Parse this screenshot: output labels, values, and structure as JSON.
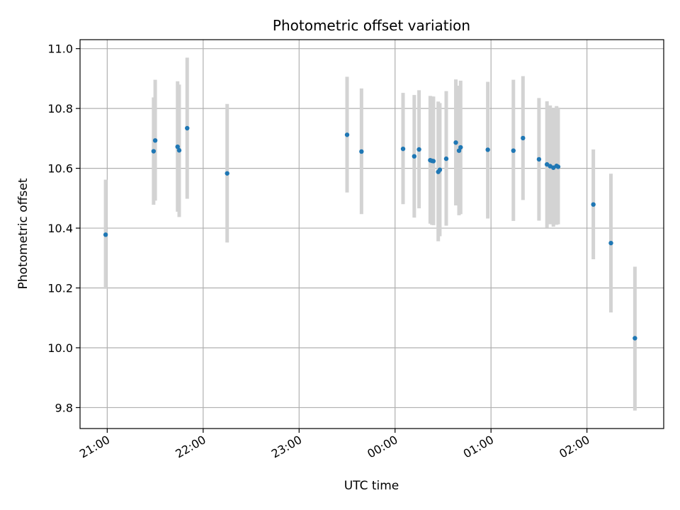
{
  "chart_data": {
    "type": "scatter",
    "title": "Photometric offset variation",
    "xlabel": "UTC time",
    "ylabel": "Photometric offset",
    "x_tick_labels": [
      "21:00",
      "22:00",
      "23:00",
      "00:00",
      "01:00",
      "02:00"
    ],
    "y_tick_labels": [
      "9.8",
      "10.0",
      "10.2",
      "10.4",
      "10.6",
      "10.8",
      "11.0"
    ],
    "y_ticks": [
      9.8,
      10.0,
      10.2,
      10.4,
      10.6,
      10.8,
      11.0
    ],
    "x_ticks": [
      "21:00",
      "22:00",
      "23:00",
      "00:00",
      "01:00",
      "02:00"
    ],
    "xlim": [
      "20:43",
      "02:48"
    ],
    "ylim": [
      9.73,
      11.03
    ],
    "grid": true,
    "colors": {
      "point": "#1f77b4",
      "errorbar": "#d3d3d3",
      "grid": "#b0b0b0"
    },
    "points": [
      {
        "x": "20:59",
        "y": 10.378,
        "ylow": 10.197,
        "yhigh": 10.562
      },
      {
        "x": "21:29",
        "y": 10.657,
        "ylow": 10.478,
        "yhigh": 10.837
      },
      {
        "x": "21:30",
        "y": 10.693,
        "ylow": 10.492,
        "yhigh": 10.896
      },
      {
        "x": "21:44",
        "y": 10.672,
        "ylow": 10.455,
        "yhigh": 10.891
      },
      {
        "x": "21:45",
        "y": 10.66,
        "ylow": 10.437,
        "yhigh": 10.88
      },
      {
        "x": "21:50",
        "y": 10.734,
        "ylow": 10.498,
        "yhigh": 10.97
      },
      {
        "x": "22:15",
        "y": 10.583,
        "ylow": 10.352,
        "yhigh": 10.815
      },
      {
        "x": "23:30",
        "y": 10.712,
        "ylow": 10.519,
        "yhigh": 10.906
      },
      {
        "x": "23:39",
        "y": 10.656,
        "ylow": 10.447,
        "yhigh": 10.867
      },
      {
        "x": "00:05",
        "y": 10.665,
        "ylow": 10.48,
        "yhigh": 10.852
      },
      {
        "x": "00:12",
        "y": 10.64,
        "ylow": 10.435,
        "yhigh": 10.845
      },
      {
        "x": "00:15",
        "y": 10.663,
        "ylow": 10.466,
        "yhigh": 10.861
      },
      {
        "x": "00:22",
        "y": 10.627,
        "ylow": 10.415,
        "yhigh": 10.842
      },
      {
        "x": "00:23",
        "y": 10.625,
        "ylow": 10.411,
        "yhigh": 10.84
      },
      {
        "x": "00:24",
        "y": 10.624,
        "ylow": 10.41,
        "yhigh": 10.84
      },
      {
        "x": "00:27",
        "y": 10.588,
        "ylow": 10.356,
        "yhigh": 10.823
      },
      {
        "x": "00:28",
        "y": 10.595,
        "ylow": 10.373,
        "yhigh": 10.818
      },
      {
        "x": "00:32",
        "y": 10.632,
        "ylow": 10.408,
        "yhigh": 10.858
      },
      {
        "x": "00:38",
        "y": 10.686,
        "ylow": 10.476,
        "yhigh": 10.897
      },
      {
        "x": "00:40",
        "y": 10.659,
        "ylow": 10.443,
        "yhigh": 10.876
      },
      {
        "x": "00:41",
        "y": 10.67,
        "ylow": 10.447,
        "yhigh": 10.893
      },
      {
        "x": "00:58",
        "y": 10.662,
        "ylow": 10.432,
        "yhigh": 10.889
      },
      {
        "x": "01:14",
        "y": 10.659,
        "ylow": 10.424,
        "yhigh": 10.896
      },
      {
        "x": "01:20",
        "y": 10.701,
        "ylow": 10.494,
        "yhigh": 10.908
      },
      {
        "x": "01:30",
        "y": 10.63,
        "ylow": 10.425,
        "yhigh": 10.835
      },
      {
        "x": "01:35",
        "y": 10.613,
        "ylow": 10.402,
        "yhigh": 10.824
      },
      {
        "x": "01:37",
        "y": 10.607,
        "ylow": 10.413,
        "yhigh": 10.81
      },
      {
        "x": "01:39",
        "y": 10.602,
        "ylow": 10.405,
        "yhigh": 10.8
      },
      {
        "x": "01:41",
        "y": 10.608,
        "ylow": 10.411,
        "yhigh": 10.808
      },
      {
        "x": "01:42",
        "y": 10.605,
        "ylow": 10.413,
        "yhigh": 10.803
      },
      {
        "x": "02:04",
        "y": 10.479,
        "ylow": 10.296,
        "yhigh": 10.663
      },
      {
        "x": "02:15",
        "y": 10.35,
        "ylow": 10.118,
        "yhigh": 10.582
      },
      {
        "x": "02:30",
        "y": 10.032,
        "ylow": 9.79,
        "yhigh": 10.271
      }
    ]
  }
}
